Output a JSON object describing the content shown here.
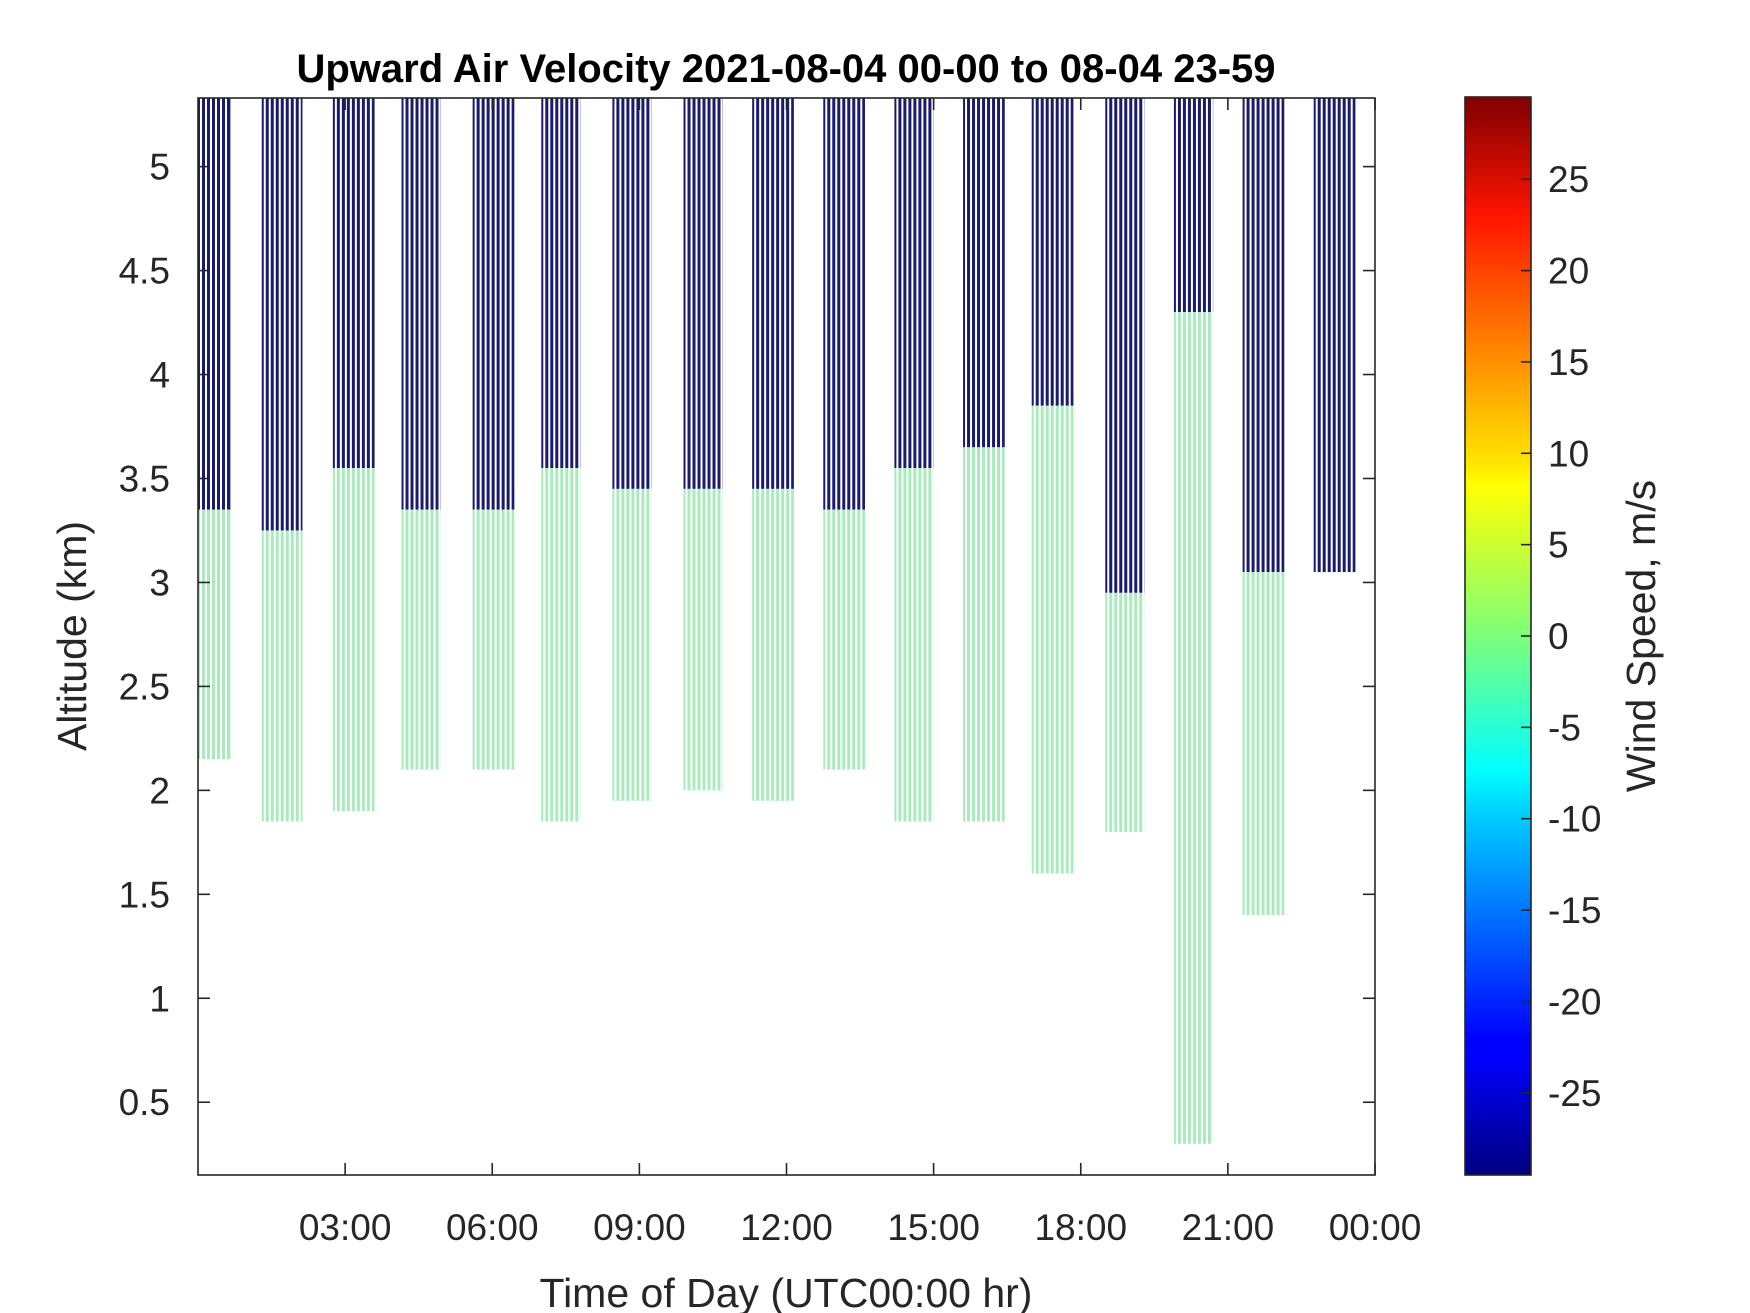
{
  "chart_data": {
    "type": "heatmap",
    "title": "Upward Air Velocity 2021-08-04 00-00 to 08-04 23-59",
    "xlabel": "Time of Day (UTC00:00 hr)",
    "ylabel": "Altitude (km)",
    "x_unit": "hours UTC",
    "xlim": [
      0,
      24
    ],
    "ylim": [
      0.15,
      5.33
    ],
    "x_ticks": [
      {
        "value": 3,
        "label": "03:00"
      },
      {
        "value": 6,
        "label": "06:00"
      },
      {
        "value": 9,
        "label": "09:00"
      },
      {
        "value": 12,
        "label": "12:00"
      },
      {
        "value": 15,
        "label": "15:00"
      },
      {
        "value": 18,
        "label": "18:00"
      },
      {
        "value": 21,
        "label": "21:00"
      },
      {
        "value": 24,
        "label": "00:00"
      }
    ],
    "y_ticks": [
      {
        "value": 0.5,
        "label": "0.5"
      },
      {
        "value": 1,
        "label": "1"
      },
      {
        "value": 1.5,
        "label": "1.5"
      },
      {
        "value": 2,
        "label": "2"
      },
      {
        "value": 2.5,
        "label": "2.5"
      },
      {
        "value": 3,
        "label": "3"
      },
      {
        "value": 3.5,
        "label": "3.5"
      },
      {
        "value": 4,
        "label": "4"
      },
      {
        "value": 4.5,
        "label": "4.5"
      },
      {
        "value": 5,
        "label": "5"
      }
    ],
    "colorbar": {
      "label": "Wind Speed, m/s",
      "range": [
        -29.5,
        29.5
      ],
      "colormap": "jet",
      "ticks": [
        {
          "value": 25,
          "label": "25"
        },
        {
          "value": 20,
          "label": "20"
        },
        {
          "value": 15,
          "label": "15"
        },
        {
          "value": 10,
          "label": "10"
        },
        {
          "value": 5,
          "label": "5"
        },
        {
          "value": 0,
          "label": "0"
        },
        {
          "value": -5,
          "label": "-5"
        },
        {
          "value": -10,
          "label": "-10"
        },
        {
          "value": -15,
          "label": "-15"
        },
        {
          "value": -20,
          "label": "-20"
        },
        {
          "value": -25,
          "label": "-25"
        }
      ]
    },
    "colors": {
      "low_band_value_color": "#a9ebbd",
      "high_band_value_color": "#1a1a6e"
    },
    "observation_blocks": [
      {
        "start_h": 0.0,
        "end_h": 0.66,
        "low_band_bottom_km": 2.15,
        "low_band_top_km": 3.35,
        "high_band_bottom_km": 3.35,
        "high_band_top_km": 5.33,
        "low_band_value": 0.5,
        "high_band_value": -29
      },
      {
        "start_h": 1.3,
        "end_h": 2.13,
        "low_band_bottom_km": 1.85,
        "low_band_top_km": 3.25,
        "high_band_bottom_km": 3.25,
        "high_band_top_km": 5.33,
        "low_band_value": 0.5,
        "high_band_value": -29
      },
      {
        "start_h": 2.75,
        "end_h": 3.6,
        "low_band_bottom_km": 1.9,
        "low_band_top_km": 3.55,
        "high_band_bottom_km": 3.55,
        "high_band_top_km": 5.33,
        "low_band_value": 0.5,
        "high_band_value": -29
      },
      {
        "start_h": 4.15,
        "end_h": 4.95,
        "low_band_bottom_km": 2.1,
        "low_band_top_km": 3.35,
        "high_band_bottom_km": 3.35,
        "high_band_top_km": 5.33,
        "low_band_value": 0.5,
        "high_band_value": -29
      },
      {
        "start_h": 5.6,
        "end_h": 6.45,
        "low_band_bottom_km": 2.1,
        "low_band_top_km": 3.35,
        "high_band_bottom_km": 3.35,
        "high_band_top_km": 5.33,
        "low_band_value": 0.5,
        "high_band_value": -29
      },
      {
        "start_h": 7.0,
        "end_h": 7.8,
        "low_band_bottom_km": 1.85,
        "low_band_top_km": 3.55,
        "high_band_bottom_km": 3.55,
        "high_band_top_km": 5.33,
        "low_band_value": 0.5,
        "high_band_value": -29
      },
      {
        "start_h": 8.45,
        "end_h": 9.25,
        "low_band_bottom_km": 1.95,
        "low_band_top_km": 3.45,
        "high_band_bottom_km": 3.45,
        "high_band_top_km": 5.33,
        "low_band_value": 0.5,
        "high_band_value": -29
      },
      {
        "start_h": 9.9,
        "end_h": 10.7,
        "low_band_bottom_km": 2.0,
        "low_band_top_km": 3.45,
        "high_band_bottom_km": 3.45,
        "high_band_top_km": 5.33,
        "low_band_value": 0.5,
        "high_band_value": -29
      },
      {
        "start_h": 11.3,
        "end_h": 12.15,
        "low_band_bottom_km": 1.95,
        "low_band_top_km": 3.45,
        "high_band_bottom_km": 3.45,
        "high_band_top_km": 5.33,
        "low_band_value": 0.5,
        "high_band_value": -29
      },
      {
        "start_h": 12.75,
        "end_h": 13.6,
        "low_band_bottom_km": 2.1,
        "low_band_top_km": 3.35,
        "high_band_bottom_km": 3.35,
        "high_band_top_km": 5.33,
        "low_band_value": 0.5,
        "high_band_value": -29
      },
      {
        "start_h": 14.2,
        "end_h": 15.0,
        "low_band_bottom_km": 1.85,
        "low_band_top_km": 3.55,
        "high_band_bottom_km": 3.55,
        "high_band_top_km": 5.33,
        "low_band_value": 0.5,
        "high_band_value": -29
      },
      {
        "start_h": 15.6,
        "end_h": 16.45,
        "low_band_bottom_km": 1.85,
        "low_band_top_km": 3.65,
        "high_band_bottom_km": 3.65,
        "high_band_top_km": 5.33,
        "low_band_value": 0.5,
        "high_band_value": -29
      },
      {
        "start_h": 17.0,
        "end_h": 17.85,
        "low_band_bottom_km": 1.6,
        "low_band_top_km": 3.85,
        "high_band_bottom_km": 3.85,
        "high_band_top_km": 5.33,
        "low_band_value": 0.5,
        "high_band_value": -29
      },
      {
        "start_h": 18.5,
        "end_h": 19.3,
        "low_band_bottom_km": 1.8,
        "low_band_top_km": 2.95,
        "high_band_bottom_km": 2.95,
        "high_band_top_km": 5.33,
        "low_band_value": 0.5,
        "high_band_value": -29
      },
      {
        "start_h": 19.9,
        "end_h": 20.7,
        "low_band_bottom_km": 0.3,
        "low_band_top_km": 4.3,
        "high_band_bottom_km": 4.3,
        "high_band_top_km": 5.33,
        "low_band_value": 0.5,
        "high_band_value": -29
      },
      {
        "start_h": 21.3,
        "end_h": 22.15,
        "low_band_bottom_km": 1.4,
        "low_band_top_km": 3.05,
        "high_band_bottom_km": 3.05,
        "high_band_top_km": 5.33,
        "low_band_value": 0.5,
        "high_band_value": -29
      },
      {
        "start_h": 22.75,
        "end_h": 23.6,
        "low_band_bottom_km": 3.05,
        "low_band_top_km": 3.05,
        "high_band_bottom_km": 3.05,
        "high_band_top_km": 5.33,
        "low_band_value": 0.5,
        "high_band_value": -29
      }
    ],
    "grid": false,
    "legend": "none"
  }
}
